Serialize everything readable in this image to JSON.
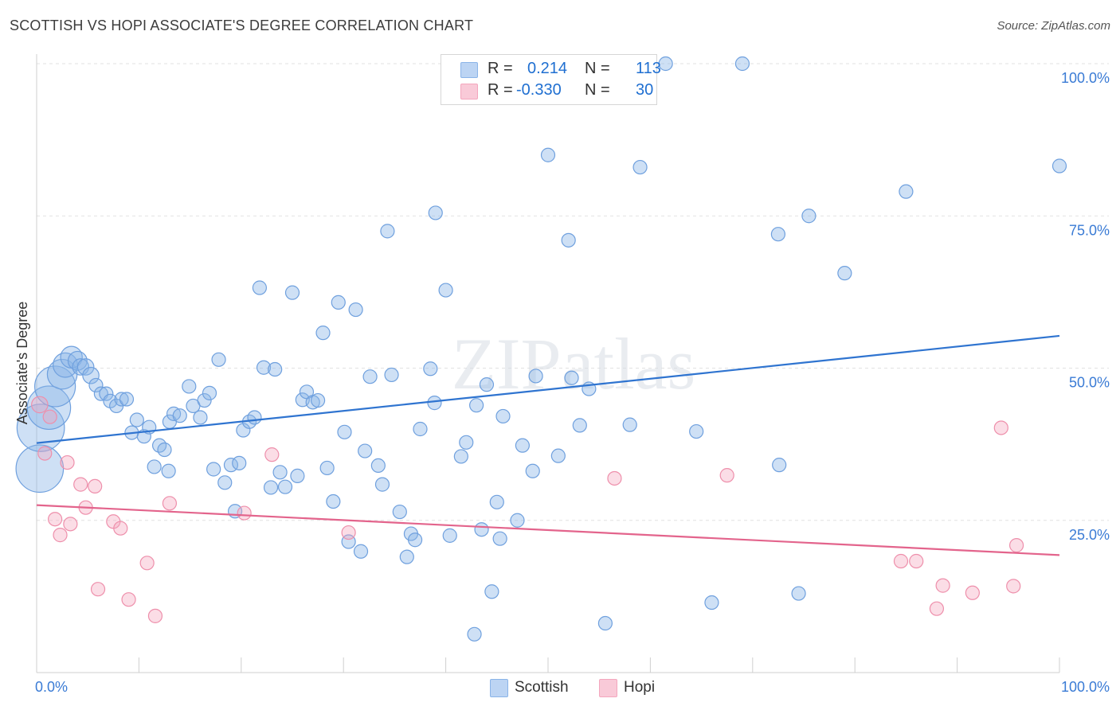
{
  "title": "SCOTTISH VS HOPI ASSOCIATE'S DEGREE CORRELATION CHART",
  "source": "Source: ZipAtlas.com",
  "watermark": "ZIPatlas",
  "legend": {
    "rows": [
      {
        "r_label": "R =",
        "r_value": "0.214",
        "n_label": "N =",
        "n_value": "113"
      },
      {
        "r_label": "R =",
        "r_value": "-0.330",
        "n_label": "N =",
        "n_value": "30"
      }
    ]
  },
  "chart_data": {
    "type": "scatter",
    "title": "SCOTTISH VS HOPI ASSOCIATE'S DEGREE CORRELATION CHART",
    "xlabel": "",
    "ylabel": "Associate's Degree",
    "xlim": [
      0,
      100
    ],
    "ylim": [
      0,
      100
    ],
    "x_tick_labels": [
      "0.0%",
      "100.0%"
    ],
    "y_tick_labels": [
      "100.0%",
      "75.0%",
      "50.0%",
      "25.0%"
    ],
    "y_tick_values": [
      100,
      75,
      50,
      25
    ],
    "grid": true,
    "colors": {
      "scottish": "#8ab4e8",
      "scottish_line": "#2f74d0",
      "hopi": "#f4a6bd",
      "hopi_line": "#e3648c",
      "axis_text": "#3a7bd5"
    },
    "series": [
      {
        "name": "Scottish",
        "trend": [
          [
            0,
            37.7
          ],
          [
            100,
            55.3
          ]
        ],
        "points": [
          [
            0.3,
            33.5,
            3.5
          ],
          [
            0.4,
            40.2,
            3.5
          ],
          [
            1.2,
            43.5,
            3.2
          ],
          [
            1.8,
            47,
            3.0
          ],
          [
            2.5,
            49,
            2.2
          ],
          [
            2.8,
            50.5,
            1.8
          ],
          [
            3.4,
            51.8,
            1.6
          ],
          [
            4,
            51.2,
            1.4
          ],
          [
            4.3,
            50.2,
            1.2
          ],
          [
            4.8,
            50.2,
            1.2
          ],
          [
            5.3,
            48.8,
            1.2
          ],
          [
            5.8,
            47.2,
            1.0
          ],
          [
            6.3,
            45.8,
            1.0
          ],
          [
            6.8,
            45.8,
            1.0
          ],
          [
            7.2,
            44.6,
            1.0
          ],
          [
            7.8,
            43.8,
            1.0
          ],
          [
            8.3,
            44.9,
            1.0
          ],
          [
            8.8,
            44.9,
            1.0
          ],
          [
            9.3,
            39.4,
            1.0
          ],
          [
            9.8,
            41.5,
            1.0
          ],
          [
            10.5,
            38.8,
            1.0
          ],
          [
            11,
            40.3,
            1.0
          ],
          [
            11.5,
            33.8,
            1.0
          ],
          [
            12,
            37.3,
            1.0
          ],
          [
            12.5,
            36.6,
            1.0
          ],
          [
            12.9,
            33.1,
            1.0
          ],
          [
            13,
            41.2,
            1.0
          ],
          [
            13.4,
            42.5,
            1.0
          ],
          [
            14,
            42.2,
            1.0
          ],
          [
            14.9,
            47.0,
            1.0
          ],
          [
            15.3,
            43.8,
            1.0
          ],
          [
            16,
            41.9,
            1.0
          ],
          [
            16.4,
            44.7,
            1.0
          ],
          [
            16.9,
            45.9,
            1.0
          ],
          [
            17.3,
            33.4,
            1.0
          ],
          [
            17.8,
            51.4,
            1.0
          ],
          [
            18.4,
            31.2,
            1.0
          ],
          [
            19,
            34.1,
            1.0
          ],
          [
            19.4,
            26.5,
            1.0
          ],
          [
            19.8,
            34.4,
            1.0
          ],
          [
            20.2,
            39.8,
            1.0
          ],
          [
            20.8,
            41.2,
            1.0
          ],
          [
            21.3,
            41.9,
            1.0
          ],
          [
            21.8,
            63.2,
            1.0
          ],
          [
            22.2,
            50.1,
            1.0
          ],
          [
            22.9,
            30.4,
            1.0
          ],
          [
            23.3,
            49.8,
            1.0
          ],
          [
            23.8,
            32.9,
            1.0
          ],
          [
            24.3,
            30.5,
            1.0
          ],
          [
            25,
            62.4,
            1.0
          ],
          [
            25.5,
            32.3,
            1.0
          ],
          [
            26,
            44.8,
            1.0
          ],
          [
            26.4,
            46.1,
            1.0
          ],
          [
            27,
            44.4,
            1.0
          ],
          [
            27.5,
            44.7,
            1.0
          ],
          [
            28,
            55.8,
            1.0
          ],
          [
            28.4,
            33.6,
            1.0
          ],
          [
            29,
            28.1,
            1.0
          ],
          [
            29.5,
            60.8,
            1.0
          ],
          [
            30.1,
            39.5,
            1.0
          ],
          [
            30.5,
            21.5,
            1.0
          ],
          [
            31.2,
            59.6,
            1.0
          ],
          [
            31.7,
            19.9,
            1.0
          ],
          [
            32.1,
            36.4,
            1.0
          ],
          [
            32.6,
            48.6,
            1.0
          ],
          [
            33.4,
            34.0,
            1.0
          ],
          [
            33.8,
            30.9,
            1.0
          ],
          [
            34.3,
            72.5,
            1.0
          ],
          [
            34.7,
            48.9,
            1.0
          ],
          [
            35.5,
            26.4,
            1.0
          ],
          [
            36.2,
            19.0,
            1.0
          ],
          [
            36.6,
            22.8,
            1.0
          ],
          [
            37,
            21.8,
            1.0
          ],
          [
            37.5,
            40.0,
            1.0
          ],
          [
            38.5,
            49.9,
            1.0
          ],
          [
            38.9,
            44.3,
            1.0
          ],
          [
            39,
            75.5,
            1.0
          ],
          [
            40,
            62.8,
            1.0
          ],
          [
            40.4,
            22.5,
            1.0
          ],
          [
            41.5,
            35.5,
            1.0
          ],
          [
            42,
            37.8,
            1.0
          ],
          [
            42.8,
            6.3,
            1.0
          ],
          [
            43,
            43.9,
            1.0
          ],
          [
            43.5,
            23.5,
            1.0
          ],
          [
            44,
            47.3,
            1.0
          ],
          [
            44.5,
            13.3,
            1.0
          ],
          [
            45,
            28.0,
            1.0
          ],
          [
            45.3,
            22.0,
            1.0
          ],
          [
            45.6,
            42.1,
            1.0
          ],
          [
            47,
            25.0,
            1.0
          ],
          [
            47.5,
            37.3,
            1.0
          ],
          [
            48.5,
            33.1,
            1.0
          ],
          [
            48.8,
            48.7,
            1.0
          ],
          [
            50,
            85.0,
            1.0
          ],
          [
            51,
            35.6,
            1.0
          ],
          [
            52,
            71.0,
            1.0
          ],
          [
            52.3,
            48.4,
            1.0
          ],
          [
            53.1,
            40.6,
            1.0
          ],
          [
            54,
            46.6,
            1.0
          ],
          [
            55.6,
            8.1,
            1.0
          ],
          [
            58,
            40.7,
            1.0
          ],
          [
            59,
            83.0,
            1.0
          ],
          [
            61.5,
            100,
            1.0
          ],
          [
            64.5,
            39.6,
            1.0
          ],
          [
            66,
            11.5,
            1.0
          ],
          [
            69,
            100,
            1.0
          ],
          [
            72.5,
            72.0,
            1.0
          ],
          [
            72.6,
            34.1,
            1.0
          ],
          [
            74.5,
            13.0,
            1.0
          ],
          [
            75.5,
            75.0,
            1.0
          ],
          [
            79,
            65.6,
            1.0
          ],
          [
            85,
            79.0,
            1.0
          ],
          [
            100,
            83.2,
            1.0
          ]
        ]
      },
      {
        "name": "Hopi",
        "trend": [
          [
            0,
            27.5
          ],
          [
            100,
            19.3
          ]
        ],
        "points": [
          [
            0.3,
            44.0,
            1.2
          ],
          [
            0.8,
            36.0,
            1.0
          ],
          [
            1.3,
            42.0,
            1.0
          ],
          [
            1.8,
            25.2,
            1.0
          ],
          [
            2.3,
            22.6,
            1.0
          ],
          [
            3,
            34.5,
            1.0
          ],
          [
            3.3,
            24.4,
            1.0
          ],
          [
            4.3,
            30.9,
            1.0
          ],
          [
            4.8,
            27.1,
            1.0
          ],
          [
            5.7,
            30.6,
            1.0
          ],
          [
            6,
            13.7,
            1.0
          ],
          [
            7.5,
            24.8,
            1.0
          ],
          [
            8.2,
            23.7,
            1.0
          ],
          [
            9,
            12.0,
            1.0
          ],
          [
            10.8,
            18.0,
            1.0
          ],
          [
            11.6,
            9.3,
            1.0
          ],
          [
            13,
            27.8,
            1.0
          ],
          [
            20.3,
            26.2,
            1.0
          ],
          [
            23,
            35.8,
            1.0
          ],
          [
            30.5,
            23.0,
            1.0
          ],
          [
            56.5,
            31.9,
            1.0
          ],
          [
            67.5,
            32.4,
            1.0
          ],
          [
            84.5,
            18.3,
            1.0
          ],
          [
            86,
            18.3,
            1.0
          ],
          [
            88,
            10.5,
            1.0
          ],
          [
            88.6,
            14.3,
            1.0
          ],
          [
            91.5,
            13.1,
            1.0
          ],
          [
            94.3,
            40.2,
            1.0
          ],
          [
            95.5,
            14.2,
            1.0
          ],
          [
            95.8,
            20.9,
            1.0
          ]
        ]
      }
    ]
  },
  "bottom_legend": [
    {
      "label": "Scottish"
    },
    {
      "label": "Hopi"
    }
  ]
}
